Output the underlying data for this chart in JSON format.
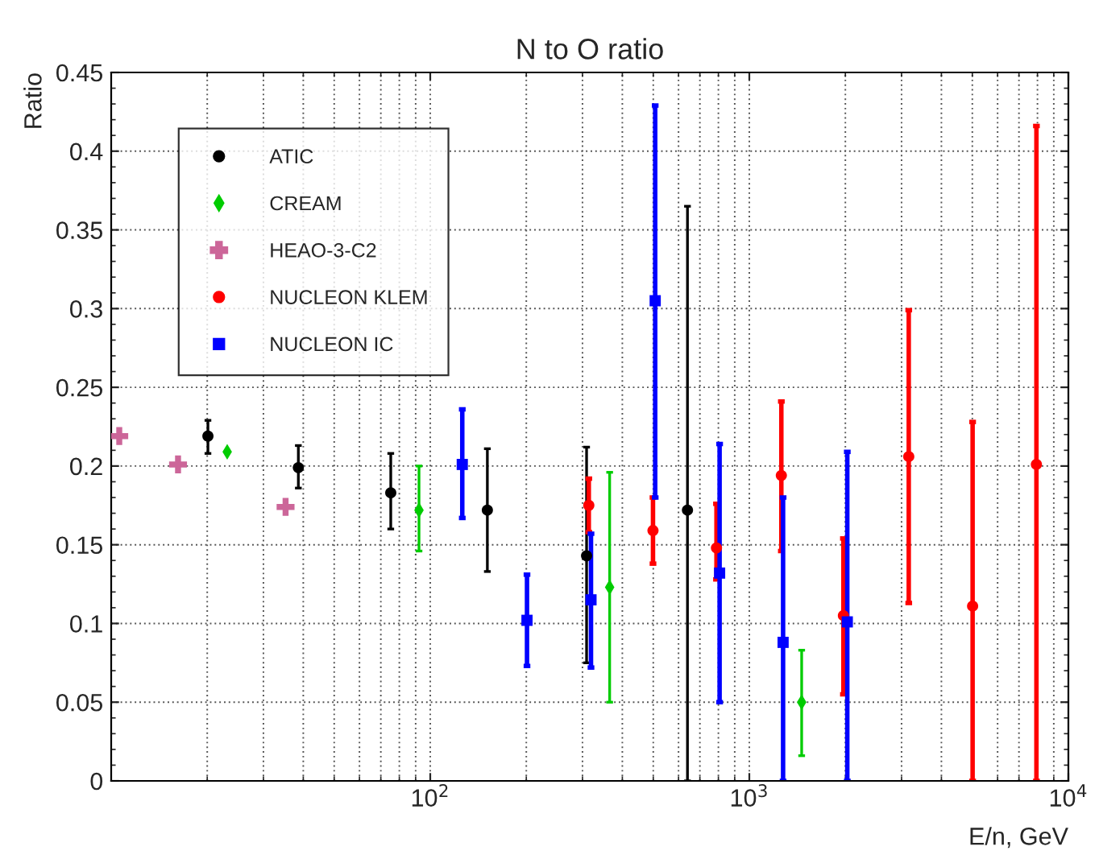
{
  "chart_data": {
    "type": "scatter",
    "title": "N to O ratio",
    "xlabel": "E/n, GeV",
    "ylabel": "Ratio",
    "log": "x",
    "xlim": [
      10,
      10000
    ],
    "xticks": [
      {
        "value": 100,
        "label": "10$^{2}$"
      },
      {
        "value": 1000,
        "label": "10$^{3}$"
      },
      {
        "value": 10000,
        "label": "10$^{4}$"
      }
    ],
    "ylim": [
      0,
      0.45
    ],
    "yticks": [
      0,
      0.05,
      0.1,
      0.15,
      0.2,
      0.25,
      0.3,
      0.35,
      0.4,
      0.45
    ],
    "grid": true,
    "legend": "top left",
    "series": [
      {
        "name": "ATIC",
        "color": "#000000",
        "marker": "circle",
        "x": [
          20.1,
          38.6,
          75.2,
          151,
          309,
          640
        ],
        "values": [
          0.219,
          0.199,
          0.183,
          0.172,
          0.143,
          0.172
        ],
        "errors": [
          [
            0.208,
            0.229
          ],
          [
            0.186,
            0.213
          ],
          [
            0.16,
            0.208
          ],
          [
            0.133,
            0.211
          ],
          [
            0.075,
            0.212
          ],
          [
            0,
            0.365
          ]
        ]
      },
      {
        "name": "CREAM",
        "color": "#00cc00",
        "marker": "diamond",
        "x": [
          23.1,
          92.2,
          365,
          1459
        ],
        "values": [
          0.209,
          0.172,
          0.123,
          0.05
        ],
        "errors": [
          null,
          [
            0.146,
            0.2
          ],
          [
            0.05,
            0.196
          ],
          [
            0.016,
            0.083
          ]
        ]
      },
      {
        "name": "HEAO-3-C2",
        "color": "#cc6699",
        "marker": "cross",
        "x": [
          10.6,
          16.2,
          35.2
        ],
        "values": [
          0.219,
          0.201,
          0.174
        ],
        "errors": [
          null,
          null,
          null
        ]
      },
      {
        "name": "NUCLEON KLEM",
        "color": "#ff0000",
        "marker": "circle",
        "x": [
          314,
          499,
          789,
          1260,
          1972,
          3160,
          5010,
          7940
        ],
        "values": [
          0.175,
          0.159,
          0.148,
          0.194,
          0.105,
          0.206,
          0.111,
          0.201
        ],
        "errors": [
          [
            0.158,
            0.192
          ],
          [
            0.138,
            0.18
          ],
          [
            0.128,
            0.176
          ],
          [
            0.146,
            0.241
          ],
          [
            0.055,
            0.154
          ],
          [
            0.113,
            0.299
          ],
          [
            0,
            0.228
          ],
          [
            0,
            0.416
          ]
        ]
      },
      {
        "name": "NUCLEON IC",
        "color": "#0000ff",
        "marker": "square",
        "x": [
          126,
          201,
          319,
          507,
          807,
          1276,
          2028
        ],
        "values": [
          0.201,
          0.102,
          0.115,
          0.305,
          0.132,
          0.088,
          0.101
        ],
        "errors": [
          [
            0.167,
            0.236
          ],
          [
            0.073,
            0.131
          ],
          [
            0.072,
            0.157
          ],
          [
            0.18,
            0.429
          ],
          [
            0.05,
            0.214
          ],
          [
            0,
            0.18
          ],
          [
            0,
            0.209
          ]
        ]
      }
    ]
  }
}
